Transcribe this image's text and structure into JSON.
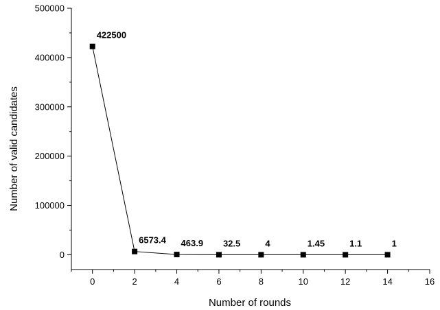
{
  "chart_data": {
    "type": "line",
    "xlabel": "Number of rounds",
    "ylabel": "Number of valid candidates",
    "xlim": [
      -1,
      16
    ],
    "ylim": [
      -30000,
      500000
    ],
    "x_ticks": [
      0,
      2,
      4,
      6,
      8,
      10,
      12,
      14,
      16
    ],
    "y_ticks": [
      0,
      100000,
      200000,
      300000,
      400000,
      500000
    ],
    "grid": false,
    "marker": "square",
    "series": [
      {
        "x": [
          0,
          2,
          4,
          6,
          8,
          10,
          12,
          14
        ],
        "values": [
          422500,
          6573.4,
          463.9,
          32.5,
          4,
          1.45,
          1.1,
          1
        ],
        "labels": [
          "422500",
          "6573.4",
          "463.9",
          "32.5",
          "4",
          "1.45",
          "1.1",
          "1"
        ]
      }
    ]
  }
}
